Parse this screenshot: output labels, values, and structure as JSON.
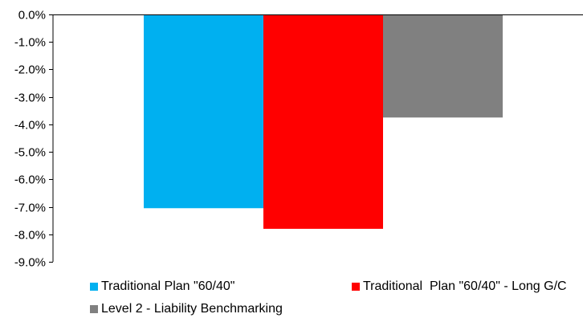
{
  "chart_data": {
    "type": "bar",
    "categories": [
      ""
    ],
    "series": [
      {
        "name": "Traditional Plan \"60/40\"",
        "values": [
          -7.05
        ],
        "color": "#00b0f0"
      },
      {
        "name": "Traditional  Plan \"60/40\" - Long G/C",
        "values": [
          -7.8
        ],
        "color": "#ff0000"
      },
      {
        "name": "Level 2 - Liability Benchmarking",
        "values": [
          -3.75
        ],
        "color": "#808080"
      }
    ],
    "ylim": [
      -9.0,
      0.0
    ],
    "yticks": [
      "0.0%",
      "-1.0%",
      "-2.0%",
      "-3.0%",
      "-4.0%",
      "-5.0%",
      "-6.0%",
      "-7.0%",
      "-8.0%",
      "-9.0%"
    ],
    "ytick_values": [
      0,
      -1,
      -2,
      -3,
      -4,
      -5,
      -6,
      -7,
      -8,
      -9
    ],
    "grid": false,
    "legend_position": "bottom",
    "title": "",
    "xlabel": "",
    "ylabel": ""
  }
}
